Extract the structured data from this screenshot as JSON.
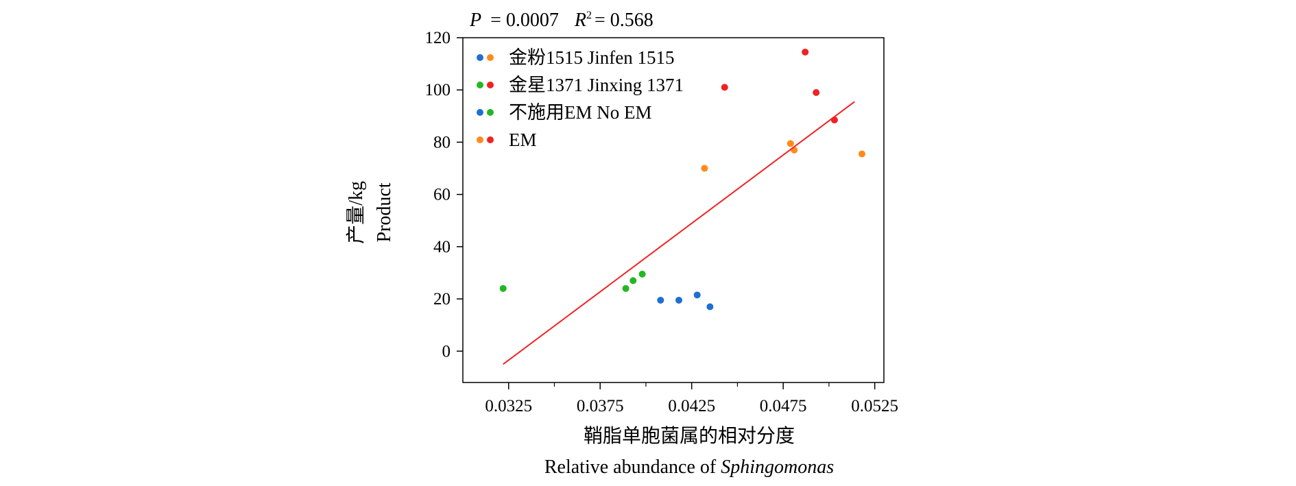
{
  "chart_data": {
    "type": "scatter",
    "stats": {
      "p_symbol": "P",
      "p_value": "= 0.0007",
      "r2_symbol": "R",
      "r2_sup": "2",
      "r2_value": "= 0.568"
    },
    "xlabel_cn": "鞘脂单胞菌属的相对分度",
    "xlabel_en_prefix": "Relative abundance of ",
    "xlabel_en_italic": "Sphingomonas",
    "ylabel_cn": "产量/kg",
    "ylabel_en": "Product",
    "xlim": [
      0.03,
      0.053
    ],
    "ylim": [
      -12,
      120
    ],
    "x_ticks": [
      0.0325,
      0.0375,
      0.0425,
      0.0475,
      0.0525
    ],
    "x_tick_labels": [
      "0.0325",
      "0.0375",
      "0.0425",
      "0.0475",
      "0.0525"
    ],
    "x_minor_ticks": [
      0.035,
      0.04,
      0.045,
      0.05
    ],
    "y_ticks": [
      0,
      20,
      40,
      60,
      80,
      100,
      120
    ],
    "y_tick_labels": [
      "0",
      "20",
      "40",
      "60",
      "80",
      "100",
      "120"
    ],
    "colors": {
      "jinfen_no_em": "#1f6fd0",
      "jinfen_em": "#ff8a1c",
      "jinxing_no_em": "#22b822",
      "jinxing_em": "#f02222",
      "fit": "#f02222"
    },
    "legend": [
      {
        "label": "金粉1515 Jinfen 1515",
        "colors": [
          "#1f6fd0",
          "#ff8a1c"
        ]
      },
      {
        "label": "金星1371 Jinxing 1371",
        "colors": [
          "#22b822",
          "#f02222"
        ]
      },
      {
        "label": "不施用EM No EM",
        "colors": [
          "#1f6fd0",
          "#22b822"
        ]
      },
      {
        "label": "EM",
        "colors": [
          "#ff8a1c",
          "#f02222"
        ]
      }
    ],
    "legend_position": "top-left",
    "series": [
      {
        "group": "jinfen_no_em",
        "color": "#1f6fd0",
        "x": [
          0.0408,
          0.0418,
          0.0428,
          0.0435
        ],
        "y": [
          19.5,
          19.5,
          21.5,
          17
        ]
      },
      {
        "group": "jinfen_em",
        "color": "#ff8a1c",
        "x": [
          0.0432,
          0.0479,
          0.0481,
          0.0518
        ],
        "y": [
          70,
          79.5,
          77,
          75.5
        ]
      },
      {
        "group": "jinxing_no_em",
        "color": "#22b822",
        "x": [
          0.0322,
          0.0389,
          0.0393,
          0.0398
        ],
        "y": [
          24,
          24,
          27,
          29.5
        ]
      },
      {
        "group": "jinxing_em",
        "color": "#f02222",
        "x": [
          0.0443,
          0.0487,
          0.0493,
          0.0503
        ],
        "y": [
          101,
          114.5,
          99,
          88.5
        ]
      }
    ],
    "fit_line": {
      "x": [
        0.0322,
        0.0514
      ],
      "y": [
        -5,
        95.5
      ]
    }
  }
}
